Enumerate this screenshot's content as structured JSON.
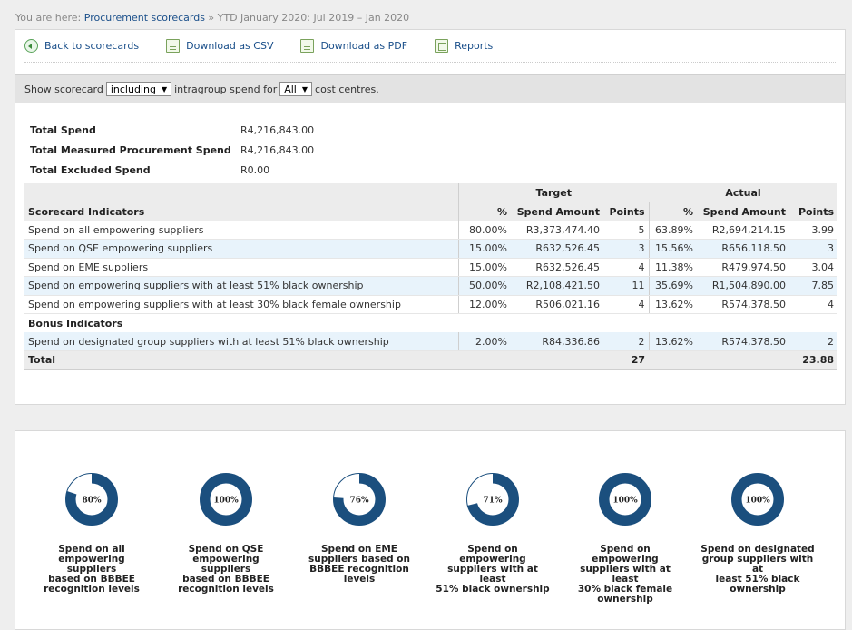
{
  "breadcrumb": {
    "prefix": "You are here:",
    "link": "Procurement scorecards",
    "current": "» YTD January 2020: Jul 2019 – Jan 2020"
  },
  "toolbar": {
    "back": "Back to scorecards",
    "csv": "Download as CSV",
    "pdf": "Download as PDF",
    "reports": "Reports"
  },
  "filter": {
    "text1": "Show scorecard",
    "select1": "including",
    "text2": "intragroup spend  for",
    "select2": "All",
    "text3": "cost centres."
  },
  "summary": [
    {
      "label": "Total Spend",
      "value": "R4,216,843.00"
    },
    {
      "label": "Total Measured Procurement Spend",
      "value": "R4,216,843.00"
    },
    {
      "label": "Total Excluded Spend",
      "value": "R0.00"
    }
  ],
  "table": {
    "group_target": "Target",
    "group_actual": "Actual",
    "col_indicator": "Scorecard Indicators",
    "col_pct": "%",
    "col_amount": "Spend Amount",
    "col_points": "Points",
    "rows": [
      {
        "name": "Spend on all empowering suppliers",
        "t_pct": "80.00%",
        "t_amt": "R3,373,474.40",
        "t_pts": "5",
        "a_pct": "63.89%",
        "a_amt": "R2,694,214.15",
        "a_pts": "3.99"
      },
      {
        "name": "Spend on QSE empowering suppliers",
        "t_pct": "15.00%",
        "t_amt": "R632,526.45",
        "t_pts": "3",
        "a_pct": "15.56%",
        "a_amt": "R656,118.50",
        "a_pts": "3"
      },
      {
        "name": "Spend on EME suppliers",
        "t_pct": "15.00%",
        "t_amt": "R632,526.45",
        "t_pts": "4",
        "a_pct": "11.38%",
        "a_amt": "R479,974.50",
        "a_pts": "3.04"
      },
      {
        "name": "Spend on empowering suppliers with at least 51% black ownership",
        "t_pct": "50.00%",
        "t_amt": "R2,108,421.50",
        "t_pts": "11",
        "a_pct": "35.69%",
        "a_amt": "R1,504,890.00",
        "a_pts": "7.85"
      },
      {
        "name": "Spend on empowering suppliers with at least 30% black female ownership",
        "t_pct": "12.00%",
        "t_amt": "R506,021.16",
        "t_pts": "4",
        "a_pct": "13.62%",
        "a_amt": "R574,378.50",
        "a_pts": "4"
      }
    ],
    "bonus_label": "Bonus Indicators",
    "bonus_rows": [
      {
        "name": "Spend on designated group suppliers with at least 51% black ownership",
        "t_pct": "2.00%",
        "t_amt": "R84,336.86",
        "t_pts": "2",
        "a_pct": "13.62%",
        "a_amt": "R574,378.50",
        "a_pts": "2"
      }
    ],
    "total_label": "Total",
    "total_target_points": "27",
    "total_actual_points": "23.88"
  },
  "donuts": [
    {
      "value": 80,
      "label_text": "80%",
      "caption": [
        "Spend on all",
        "empowering suppliers",
        "based on BBBEE",
        "recognition levels"
      ]
    },
    {
      "value": 100,
      "label_text": "100%",
      "caption": [
        "Spend on QSE",
        "empowering suppliers",
        "based on BBBEE",
        "recognition levels"
      ]
    },
    {
      "value": 76,
      "label_text": "76%",
      "caption": [
        "Spend on EME",
        "suppliers based on",
        "BBBEE recognition",
        "levels"
      ]
    },
    {
      "value": 71,
      "label_text": "71%",
      "caption": [
        "Spend on empowering",
        "suppliers with at least",
        "51% black ownership"
      ]
    },
    {
      "value": 100,
      "label_text": "100%",
      "caption": [
        "Spend on empowering",
        "suppliers with at least",
        "30% black female",
        "ownership"
      ]
    },
    {
      "value": 100,
      "label_text": "100%",
      "caption": [
        "Spend on designated",
        "group suppliers with at",
        "least 51% black",
        "ownership"
      ]
    }
  ],
  "colors": {
    "donut": "#1b4f7e",
    "link": "#1a4f8a",
    "row_alt": "#e8f3fb"
  }
}
